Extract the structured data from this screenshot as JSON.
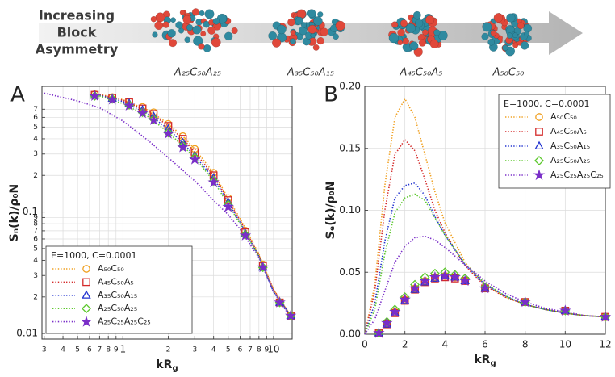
{
  "banner": {
    "title_lines": [
      "Increasing",
      "Block",
      "Asymmetry"
    ],
    "labels": [
      "A₂₅C₅₀A₂₅",
      "A₃₅C₅₀A₁₅",
      "A₄₅C₅₀A₅",
      "A₅₀C₅₀"
    ]
  },
  "chart_data": [
    {
      "type": "line",
      "panel": "A",
      "log": true,
      "grid": true,
      "ylabel": "Sₙ(k)/ρ₀N",
      "xlabel": [
        "kR",
        "g"
      ],
      "legend_title": "E=1000, C=0.0001",
      "legend": "lower left",
      "xlim": [
        0.29,
        13.3
      ],
      "ylim": [
        0.009,
        1.08
      ],
      "xticks": [
        {
          "value": 0.3,
          "label": "3"
        },
        {
          "value": 0.4,
          "label": "4"
        },
        {
          "value": 0.5,
          "label": "5"
        },
        {
          "value": 0.6,
          "label": "6"
        },
        {
          "value": 0.7,
          "label": "7"
        },
        {
          "value": 0.8,
          "label": "8"
        },
        {
          "value": 0.9,
          "label": "9"
        },
        1,
        {
          "value": 2,
          "label": "2"
        },
        {
          "value": 3,
          "label": "3"
        },
        {
          "value": 4,
          "label": "4"
        },
        {
          "value": 5,
          "label": "5"
        },
        {
          "value": 6,
          "label": "6"
        },
        {
          "value": 7,
          "label": "7"
        },
        {
          "value": 8,
          "label": "8"
        },
        {
          "value": 9,
          "label": "9"
        },
        10
      ],
      "yticks": [
        0.01,
        {
          "value": 0.02,
          "label": "2"
        },
        {
          "value": 0.03,
          "label": "3"
        },
        {
          "value": 0.04,
          "label": "4"
        },
        {
          "value": 0.05,
          "label": "5"
        },
        {
          "value": 0.06,
          "label": "6"
        },
        {
          "value": 0.07,
          "label": "7"
        },
        {
          "value": 0.08,
          "label": "8"
        },
        {
          "value": 0.09,
          "label": "9"
        },
        0.1,
        {
          "value": 0.2,
          "label": "2"
        },
        {
          "value": 0.3,
          "label": "3"
        },
        {
          "value": 0.4,
          "label": "4"
        },
        {
          "value": 0.5,
          "label": "5"
        },
        {
          "value": 0.6,
          "label": "6"
        },
        {
          "value": 0.7,
          "label": "7"
        }
      ],
      "x": [
        0.3,
        0.5,
        0.7,
        1,
        1.5,
        2,
        2.5,
        3,
        4,
        5,
        6,
        8,
        10,
        13
      ],
      "marker_x": [
        0.65,
        0.85,
        1.1,
        1.35,
        1.6,
        2,
        2.5,
        3,
        4,
        5,
        6.5,
        8.5,
        11,
        13
      ],
      "series": [
        {
          "name": "A₅₀C₅₀",
          "color": "#f0a020",
          "marker": "circle",
          "values": [
            null,
            null,
            0.93,
            0.84,
            0.68,
            0.53,
            0.42,
            0.33,
            0.21,
            0.13,
            0.088,
            0.045,
            0.023,
            0.014
          ],
          "marker_values": [
            0.93,
            0.88,
            0.81,
            0.73,
            0.66,
            0.53,
            0.42,
            0.33,
            0.21,
            0.13,
            0.07,
            0.037,
            0.018,
            0.014
          ]
        },
        {
          "name": "A₄₅C₅₀A₅",
          "color": "#d42a2a",
          "marker": "square",
          "values": [
            null,
            null,
            0.92,
            0.83,
            0.66,
            0.51,
            0.4,
            0.31,
            0.2,
            0.125,
            0.085,
            0.044,
            0.023,
            0.014
          ],
          "marker_values": [
            0.92,
            0.87,
            0.8,
            0.71,
            0.64,
            0.51,
            0.4,
            0.31,
            0.2,
            0.125,
            0.068,
            0.036,
            0.018,
            0.014
          ]
        },
        {
          "name": "A₃₅C₅₀A₁₅",
          "color": "#2233d0",
          "marker": "triangle",
          "values": [
            null,
            null,
            0.91,
            0.81,
            0.63,
            0.48,
            0.37,
            0.29,
            0.19,
            0.12,
            0.082,
            0.043,
            0.022,
            0.014
          ],
          "marker_values": [
            0.91,
            0.86,
            0.78,
            0.69,
            0.61,
            0.48,
            0.37,
            0.29,
            0.19,
            0.12,
            0.066,
            0.035,
            0.018,
            0.014
          ]
        },
        {
          "name": "A₂₅C₅₀A₂₅",
          "color": "#5cc82c",
          "marker": "diamond",
          "values": [
            null,
            null,
            0.9,
            0.78,
            0.6,
            0.45,
            0.35,
            0.28,
            0.18,
            0.115,
            0.08,
            0.043,
            0.022,
            0.014
          ],
          "marker_values": [
            0.9,
            0.85,
            0.76,
            0.66,
            0.58,
            0.45,
            0.35,
            0.28,
            0.18,
            0.115,
            0.065,
            0.035,
            0.018,
            0.014
          ]
        },
        {
          "name": "A₂₅C₂₅A₂₅C₂₅",
          "color": "#7a2ec8",
          "marker": "star",
          "values": [
            0.95,
            0.82,
            0.72,
            0.56,
            0.38,
            0.28,
            0.22,
            0.18,
            0.125,
            0.095,
            0.072,
            0.042,
            0.022,
            0.0135
          ],
          "marker_values": [
            0.9,
            0.84,
            0.75,
            0.65,
            0.57,
            0.44,
            0.34,
            0.27,
            0.175,
            0.11,
            0.064,
            0.035,
            0.018,
            0.014
          ]
        }
      ]
    },
    {
      "type": "line",
      "panel": "B",
      "log": false,
      "grid": true,
      "ylabel": "Sₑ(k)/ρ₀N",
      "xlabel": [
        "kR",
        "g"
      ],
      "legend_title": "E=1000, C=0.0001",
      "legend": "upper right",
      "xlim": [
        0,
        12
      ],
      "ylim": [
        0,
        0.2
      ],
      "xticks": [
        0,
        2,
        4,
        6,
        8,
        10,
        12
      ],
      "yticks": [
        {
          "value": 0,
          "label": "0.00"
        },
        {
          "value": 0.05,
          "label": "0.05"
        },
        {
          "value": 0.1,
          "label": "0.10"
        },
        {
          "value": 0.15,
          "label": "0.15"
        },
        {
          "value": 0.2,
          "label": "0.20"
        }
      ],
      "x": [
        0,
        0.5,
        1,
        1.5,
        2,
        2.5,
        3,
        3.5,
        4,
        5,
        6,
        7,
        8,
        9,
        10,
        11,
        12
      ],
      "marker_x": [
        0.7,
        1.1,
        1.5,
        2,
        2.5,
        3,
        3.5,
        4,
        4.5,
        5,
        6,
        8,
        10,
        12
      ],
      "series": [
        {
          "name": "A₅₀C₅₀",
          "color": "#f0a020",
          "marker": "circle",
          "values": [
            0,
            0.04,
            0.12,
            0.175,
            0.19,
            0.175,
            0.145,
            0.115,
            0.09,
            0.058,
            0.04,
            0.03,
            0.024,
            0.02,
            0.017,
            0.015,
            0.014
          ],
          "marker_values": [
            0.001,
            0.009,
            0.018,
            0.028,
            0.037,
            0.043,
            0.046,
            0.047,
            0.046,
            0.043,
            0.037,
            0.026,
            0.019,
            0.014
          ]
        },
        {
          "name": "A₄₅C₅₀A₅",
          "color": "#d42a2a",
          "marker": "square",
          "values": [
            0,
            0.035,
            0.1,
            0.145,
            0.157,
            0.148,
            0.125,
            0.1,
            0.082,
            0.055,
            0.039,
            0.03,
            0.024,
            0.02,
            0.017,
            0.015,
            0.014
          ],
          "marker_values": [
            0.001,
            0.008,
            0.017,
            0.027,
            0.036,
            0.042,
            0.045,
            0.046,
            0.045,
            0.043,
            0.037,
            0.026,
            0.019,
            0.014
          ]
        },
        {
          "name": "A₃₅C₅₀A₁₅",
          "color": "#2233d0",
          "marker": "triangle",
          "values": [
            0,
            0.025,
            0.075,
            0.11,
            0.12,
            0.122,
            0.112,
            0.095,
            0.08,
            0.056,
            0.04,
            0.031,
            0.024,
            0.02,
            0.017,
            0.015,
            0.014
          ],
          "marker_values": [
            0.001,
            0.008,
            0.017,
            0.027,
            0.036,
            0.042,
            0.045,
            0.047,
            0.046,
            0.043,
            0.037,
            0.026,
            0.019,
            0.014
          ]
        },
        {
          "name": "A₂₅C₅₀A₂₅",
          "color": "#5cc82c",
          "marker": "diamond",
          "values": [
            0,
            0.02,
            0.065,
            0.098,
            0.11,
            0.113,
            0.108,
            0.094,
            0.08,
            0.057,
            0.041,
            0.031,
            0.024,
            0.02,
            0.017,
            0.015,
            0.014
          ],
          "marker_values": [
            0.001,
            0.01,
            0.02,
            0.03,
            0.04,
            0.046,
            0.049,
            0.05,
            0.048,
            0.045,
            0.038,
            0.026,
            0.019,
            0.014
          ]
        },
        {
          "name": "A₂₅C₂₅A₂₅C₂₅",
          "color": "#7a2ec8",
          "marker": "star",
          "values": [
            0,
            0.012,
            0.035,
            0.058,
            0.071,
            0.078,
            0.079,
            0.076,
            0.07,
            0.056,
            0.043,
            0.033,
            0.026,
            0.021,
            0.018,
            0.015,
            0.014
          ],
          "marker_values": [
            0.001,
            0.009,
            0.018,
            0.028,
            0.037,
            0.043,
            0.046,
            0.047,
            0.046,
            0.043,
            0.037,
            0.026,
            0.019,
            0.014
          ]
        }
      ]
    }
  ]
}
